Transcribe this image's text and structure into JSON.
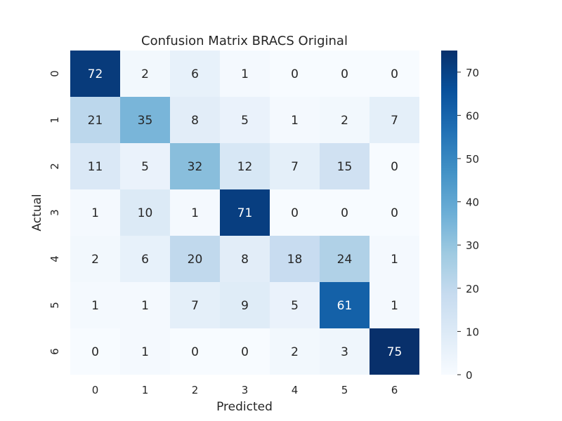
{
  "chart_data": {
    "type": "heatmap",
    "title": "Confusion Matrix BRACS Original",
    "xlabel": "Predicted",
    "ylabel": "Actual",
    "x_categories": [
      "0",
      "1",
      "2",
      "3",
      "4",
      "5",
      "6"
    ],
    "y_categories": [
      "0",
      "1",
      "2",
      "3",
      "4",
      "5",
      "6"
    ],
    "values": [
      [
        72,
        2,
        6,
        1,
        0,
        0,
        0
      ],
      [
        21,
        35,
        8,
        5,
        1,
        2,
        7
      ],
      [
        11,
        5,
        32,
        12,
        7,
        15,
        0
      ],
      [
        1,
        10,
        1,
        71,
        0,
        0,
        0
      ],
      [
        2,
        6,
        20,
        8,
        18,
        24,
        1
      ],
      [
        1,
        1,
        7,
        9,
        5,
        61,
        1
      ],
      [
        0,
        1,
        0,
        0,
        2,
        3,
        75
      ]
    ],
    "colormap": "Blues",
    "vmin": 0,
    "vmax": 75,
    "colorbar_ticks": [
      "0",
      "10",
      "20",
      "30",
      "40",
      "50",
      "60",
      "70"
    ],
    "colorbar_tick_values": [
      0,
      10,
      20,
      30,
      40,
      50,
      60,
      70
    ],
    "colors": {
      "low": "#f7fbff",
      "high": "#08306b",
      "text_dark": "#262626",
      "text_light": "#ffffff"
    }
  }
}
